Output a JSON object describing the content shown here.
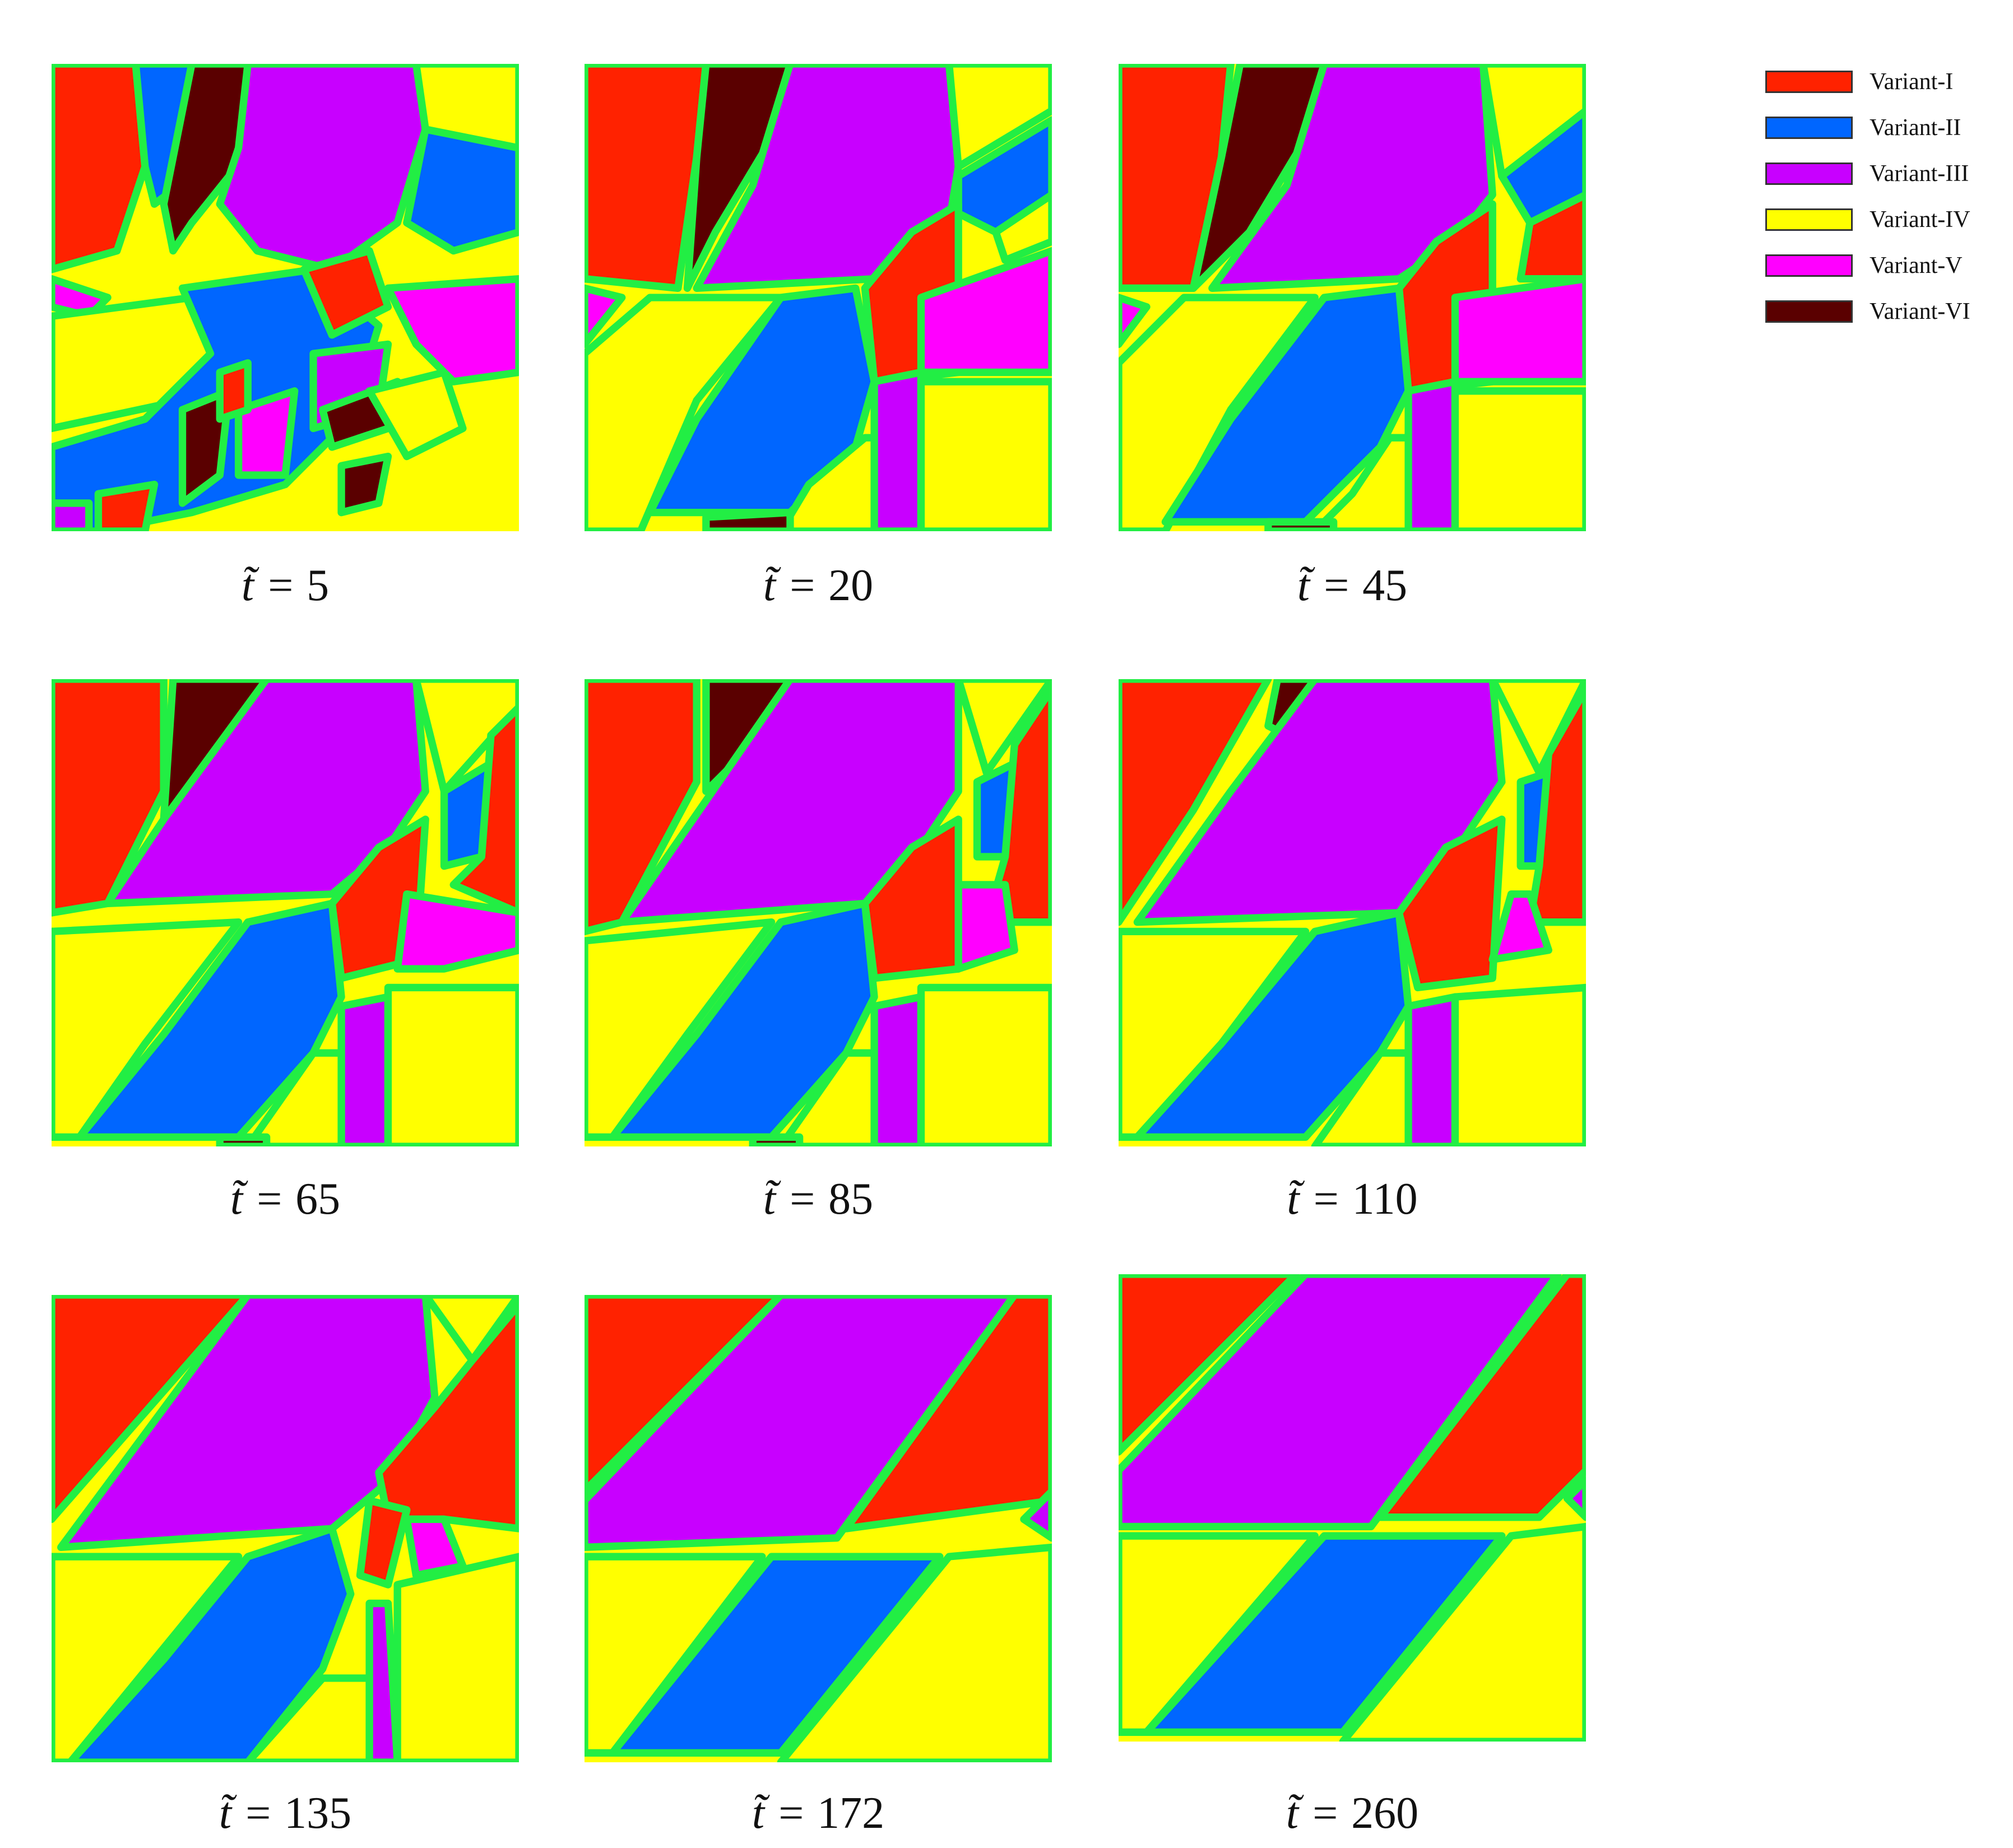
{
  "legend": [
    {
      "label": "Variant-I",
      "color": "#ff2200"
    },
    {
      "label": "Variant-II",
      "color": "#0066ff"
    },
    {
      "label": "Variant-III",
      "color": "#c800ff"
    },
    {
      "label": "Variant-IV",
      "color": "#ffff00"
    },
    {
      "label": "Variant-V",
      "color": "#ff00ff"
    },
    {
      "label": "Variant-VI",
      "color": "#5a0000"
    }
  ],
  "boundary_color": "#22ee44",
  "panels": [
    {
      "caption": "5"
    },
    {
      "caption": "20"
    },
    {
      "caption": "45"
    },
    {
      "caption": "65"
    },
    {
      "caption": "85"
    },
    {
      "caption": "110"
    },
    {
      "caption": "135"
    },
    {
      "caption": "172"
    },
    {
      "caption": "260"
    }
  ],
  "caption_prefix": "t̃ ="
}
